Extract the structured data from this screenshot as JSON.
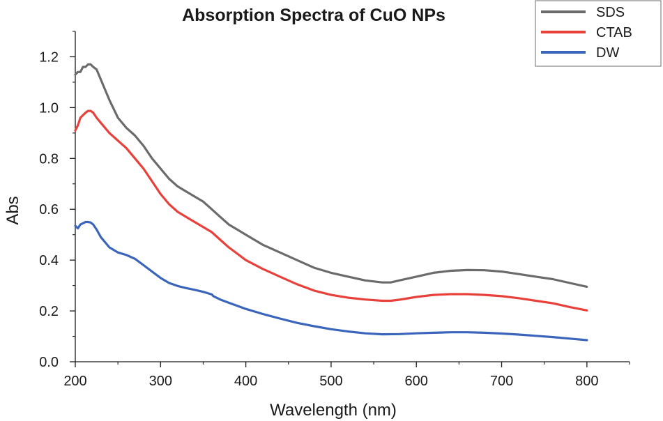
{
  "chart_data": {
    "type": "line",
    "title": "Absorption Spectra of CuO NPs",
    "xlabel": "Wavelength (nm)",
    "ylabel": "Abs",
    "xlim": [
      200,
      850
    ],
    "ylim": [
      0,
      1.3
    ],
    "xticks": [
      200,
      300,
      400,
      500,
      600,
      700,
      800
    ],
    "xtick_labels": [
      "200",
      "300",
      "400",
      "500",
      "600",
      "700",
      "800"
    ],
    "yticks": [
      0,
      0.2,
      0.4,
      0.6,
      0.8,
      1.0,
      1.2
    ],
    "ytick_labels": [
      "0.0",
      "0.2",
      "0.4",
      "0.6",
      "0.8",
      "1.0",
      "1.2"
    ],
    "grid": false,
    "legend_position": "top-right",
    "series": [
      {
        "name": "SDS",
        "color": "#6b6b6b",
        "x": [
          200,
          203,
          206,
          209,
          212,
          215,
          218,
          221,
          225,
          230,
          240,
          250,
          260,
          270,
          280,
          290,
          300,
          310,
          320,
          330,
          340,
          350,
          360,
          370,
          380,
          390,
          400,
          420,
          440,
          460,
          480,
          500,
          520,
          540,
          560,
          570,
          580,
          600,
          620,
          640,
          660,
          680,
          700,
          720,
          740,
          760,
          780,
          800
        ],
        "y": [
          1.13,
          1.14,
          1.14,
          1.16,
          1.16,
          1.17,
          1.17,
          1.16,
          1.15,
          1.11,
          1.03,
          0.96,
          0.92,
          0.89,
          0.85,
          0.8,
          0.76,
          0.72,
          0.69,
          0.67,
          0.65,
          0.63,
          0.6,
          0.57,
          0.54,
          0.52,
          0.5,
          0.46,
          0.43,
          0.4,
          0.37,
          0.35,
          0.335,
          0.32,
          0.312,
          0.312,
          0.32,
          0.335,
          0.35,
          0.358,
          0.361,
          0.36,
          0.355,
          0.345,
          0.335,
          0.325,
          0.31,
          0.295
        ]
      },
      {
        "name": "CTAB",
        "color": "#e8403a",
        "x": [
          200,
          203,
          206,
          209,
          212,
          215,
          218,
          221,
          225,
          230,
          240,
          250,
          260,
          270,
          280,
          290,
          300,
          310,
          320,
          330,
          340,
          350,
          360,
          370,
          380,
          390,
          400,
          420,
          440,
          460,
          480,
          500,
          520,
          540,
          560,
          570,
          580,
          600,
          620,
          640,
          660,
          680,
          700,
          720,
          740,
          760,
          780,
          800
        ],
        "y": [
          0.91,
          0.93,
          0.96,
          0.97,
          0.98,
          0.987,
          0.987,
          0.98,
          0.96,
          0.94,
          0.9,
          0.87,
          0.84,
          0.8,
          0.76,
          0.71,
          0.66,
          0.62,
          0.59,
          0.57,
          0.55,
          0.53,
          0.51,
          0.48,
          0.45,
          0.425,
          0.4,
          0.365,
          0.335,
          0.305,
          0.28,
          0.263,
          0.252,
          0.245,
          0.24,
          0.24,
          0.244,
          0.255,
          0.263,
          0.266,
          0.266,
          0.263,
          0.258,
          0.25,
          0.24,
          0.23,
          0.215,
          0.202
        ]
      },
      {
        "name": "DW",
        "color": "#3b65ba",
        "x": [
          200,
          203,
          206,
          209,
          212,
          215,
          218,
          221,
          225,
          230,
          240,
          250,
          260,
          270,
          280,
          290,
          300,
          310,
          320,
          330,
          340,
          350,
          360,
          362,
          370,
          380,
          390,
          400,
          420,
          440,
          460,
          480,
          500,
          520,
          540,
          560,
          580,
          600,
          620,
          640,
          660,
          680,
          700,
          720,
          740,
          760,
          780,
          800
        ],
        "y": [
          0.535,
          0.525,
          0.54,
          0.545,
          0.55,
          0.55,
          0.548,
          0.54,
          0.52,
          0.49,
          0.45,
          0.43,
          0.42,
          0.405,
          0.38,
          0.355,
          0.33,
          0.31,
          0.298,
          0.29,
          0.283,
          0.275,
          0.265,
          0.258,
          0.245,
          0.232,
          0.22,
          0.208,
          0.188,
          0.17,
          0.153,
          0.14,
          0.128,
          0.119,
          0.112,
          0.108,
          0.109,
          0.112,
          0.114,
          0.116,
          0.116,
          0.114,
          0.111,
          0.107,
          0.102,
          0.097,
          0.091,
          0.085
        ]
      }
    ]
  }
}
